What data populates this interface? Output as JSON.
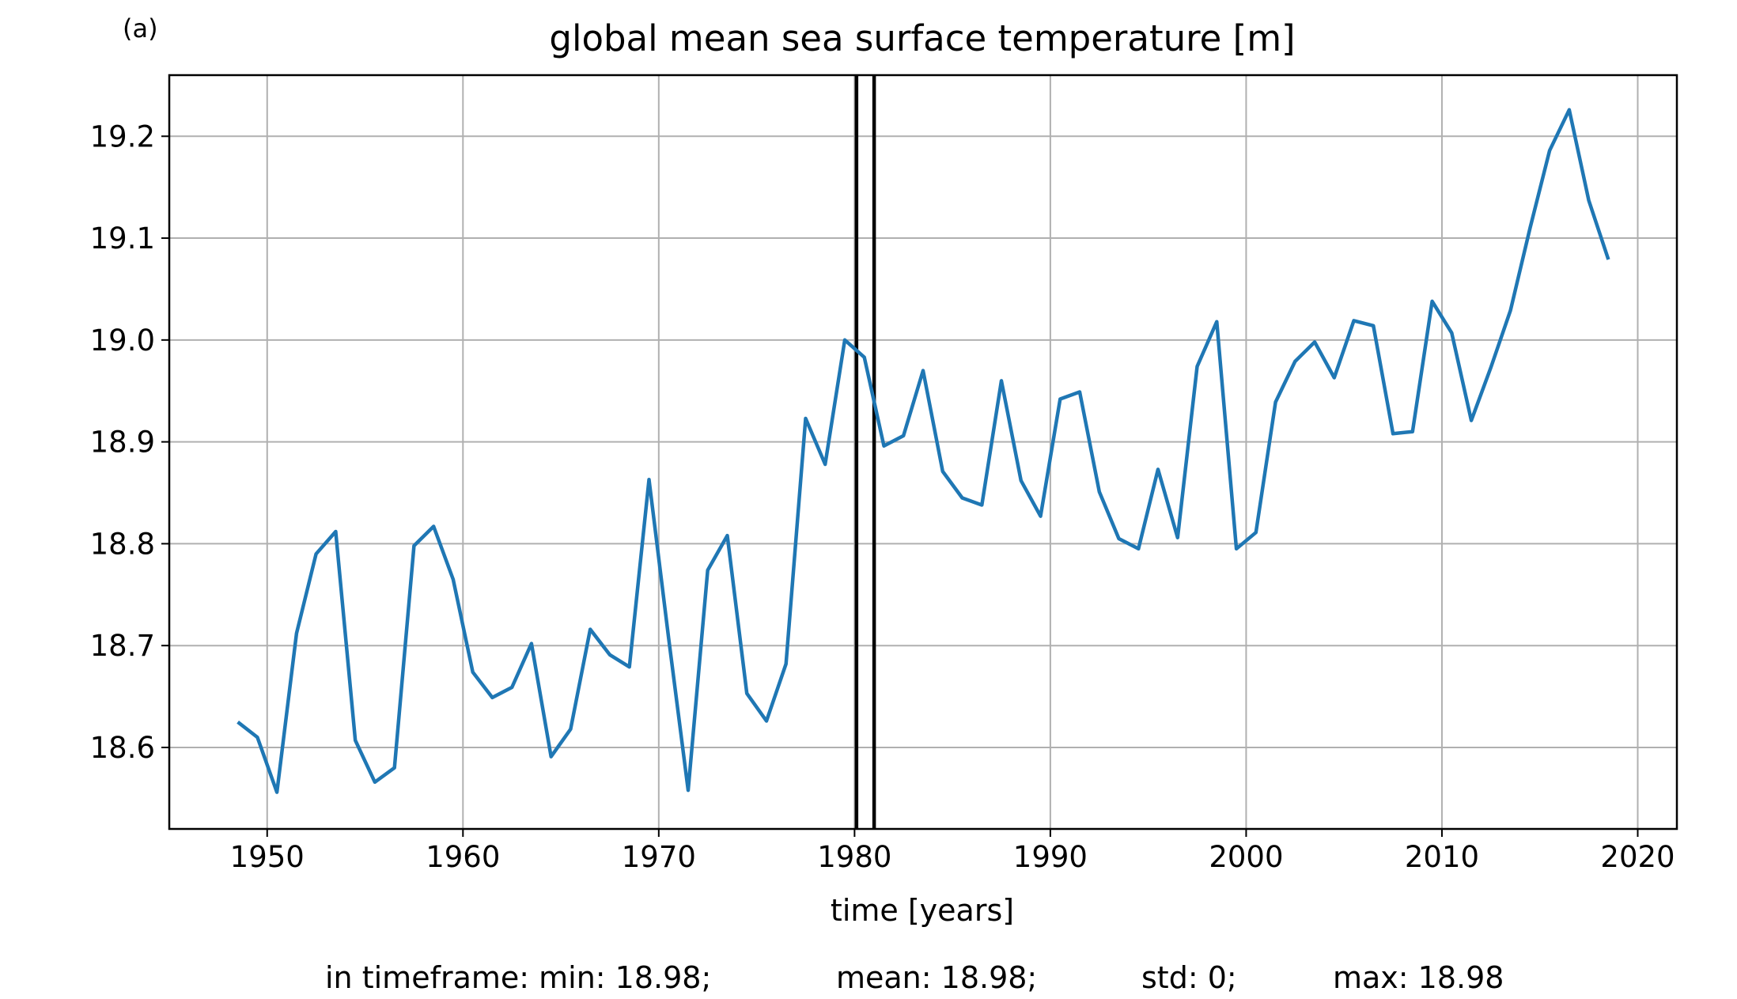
{
  "panel_label": "(a)",
  "chart_data": {
    "type": "line",
    "title": "global mean sea surface temperature [m]",
    "xlabel": "time [years]",
    "ylabel": "",
    "xlim": [
      1945,
      2022
    ],
    "ylim": [
      18.52,
      19.26
    ],
    "xticks": [
      1950,
      1960,
      1970,
      1980,
      1990,
      2000,
      2010,
      2020
    ],
    "yticks": [
      18.6,
      18.7,
      18.8,
      18.9,
      19.0,
      19.1,
      19.2
    ],
    "ytick_labels": [
      "18.6",
      "18.7",
      "18.8",
      "18.9",
      "19.0",
      "19.1",
      "19.2"
    ],
    "grid": true,
    "line_color": "#1f77b4",
    "vlines": [
      {
        "x": 1980.1,
        "color": "#000000"
      },
      {
        "x": 1981.0,
        "color": "#000000"
      }
    ],
    "series": [
      {
        "x": [
          1948.5,
          1949.5,
          1950.5,
          1951.5,
          1952.5,
          1953.5,
          1954.5,
          1955.5,
          1956.5,
          1957.5,
          1958.5,
          1959.5,
          1960.5,
          1961.5,
          1962.5,
          1963.5,
          1964.5,
          1965.5,
          1966.5,
          1967.5,
          1968.5,
          1969.5,
          1970.5,
          1971.5,
          1972.5,
          1973.5,
          1974.5,
          1975.5,
          1976.5,
          1977.5,
          1978.5,
          1979.5,
          1980.5,
          1981.5,
          1982.5,
          1983.5,
          1984.5,
          1985.5,
          1986.5,
          1987.5,
          1988.5,
          1989.5,
          1990.5,
          1991.5,
          1992.5,
          1993.5,
          1994.5,
          1995.5,
          1996.5,
          1997.5,
          1998.5,
          1999.5,
          2000.5,
          2001.5,
          2002.5,
          2003.5,
          2004.5,
          2005.5,
          2006.5,
          2007.5,
          2008.5,
          2009.5,
          2010.5,
          2011.5,
          2012.5,
          2013.5,
          2014.5,
          2015.5,
          2016.5,
          2017.5,
          2018.5
        ],
        "y": [
          18.625,
          18.61,
          18.556,
          18.712,
          18.79,
          18.812,
          18.607,
          18.566,
          18.58,
          18.798,
          18.817,
          18.765,
          18.674,
          18.649,
          18.659,
          18.702,
          18.591,
          18.618,
          18.716,
          18.691,
          18.679,
          18.863,
          18.708,
          18.558,
          18.774,
          18.808,
          18.653,
          18.626,
          18.682,
          18.923,
          18.878,
          19.0,
          18.983,
          18.896,
          18.906,
          18.97,
          18.871,
          18.845,
          18.838,
          18.96,
          18.862,
          18.827,
          18.942,
          18.949,
          18.851,
          18.805,
          18.795,
          18.873,
          18.806,
          18.974,
          19.018,
          18.795,
          18.811,
          18.939,
          18.979,
          18.998,
          18.963,
          19.019,
          19.014,
          18.908,
          18.91,
          19.038,
          19.007,
          18.921,
          18.973,
          19.029,
          19.11,
          19.186,
          19.226,
          19.137,
          19.079
        ]
      }
    ]
  },
  "summary": {
    "min": "in timeframe: min: 18.98;",
    "mean": "mean: 18.98;",
    "std": "std: 0;",
    "max": "max: 18.98"
  }
}
